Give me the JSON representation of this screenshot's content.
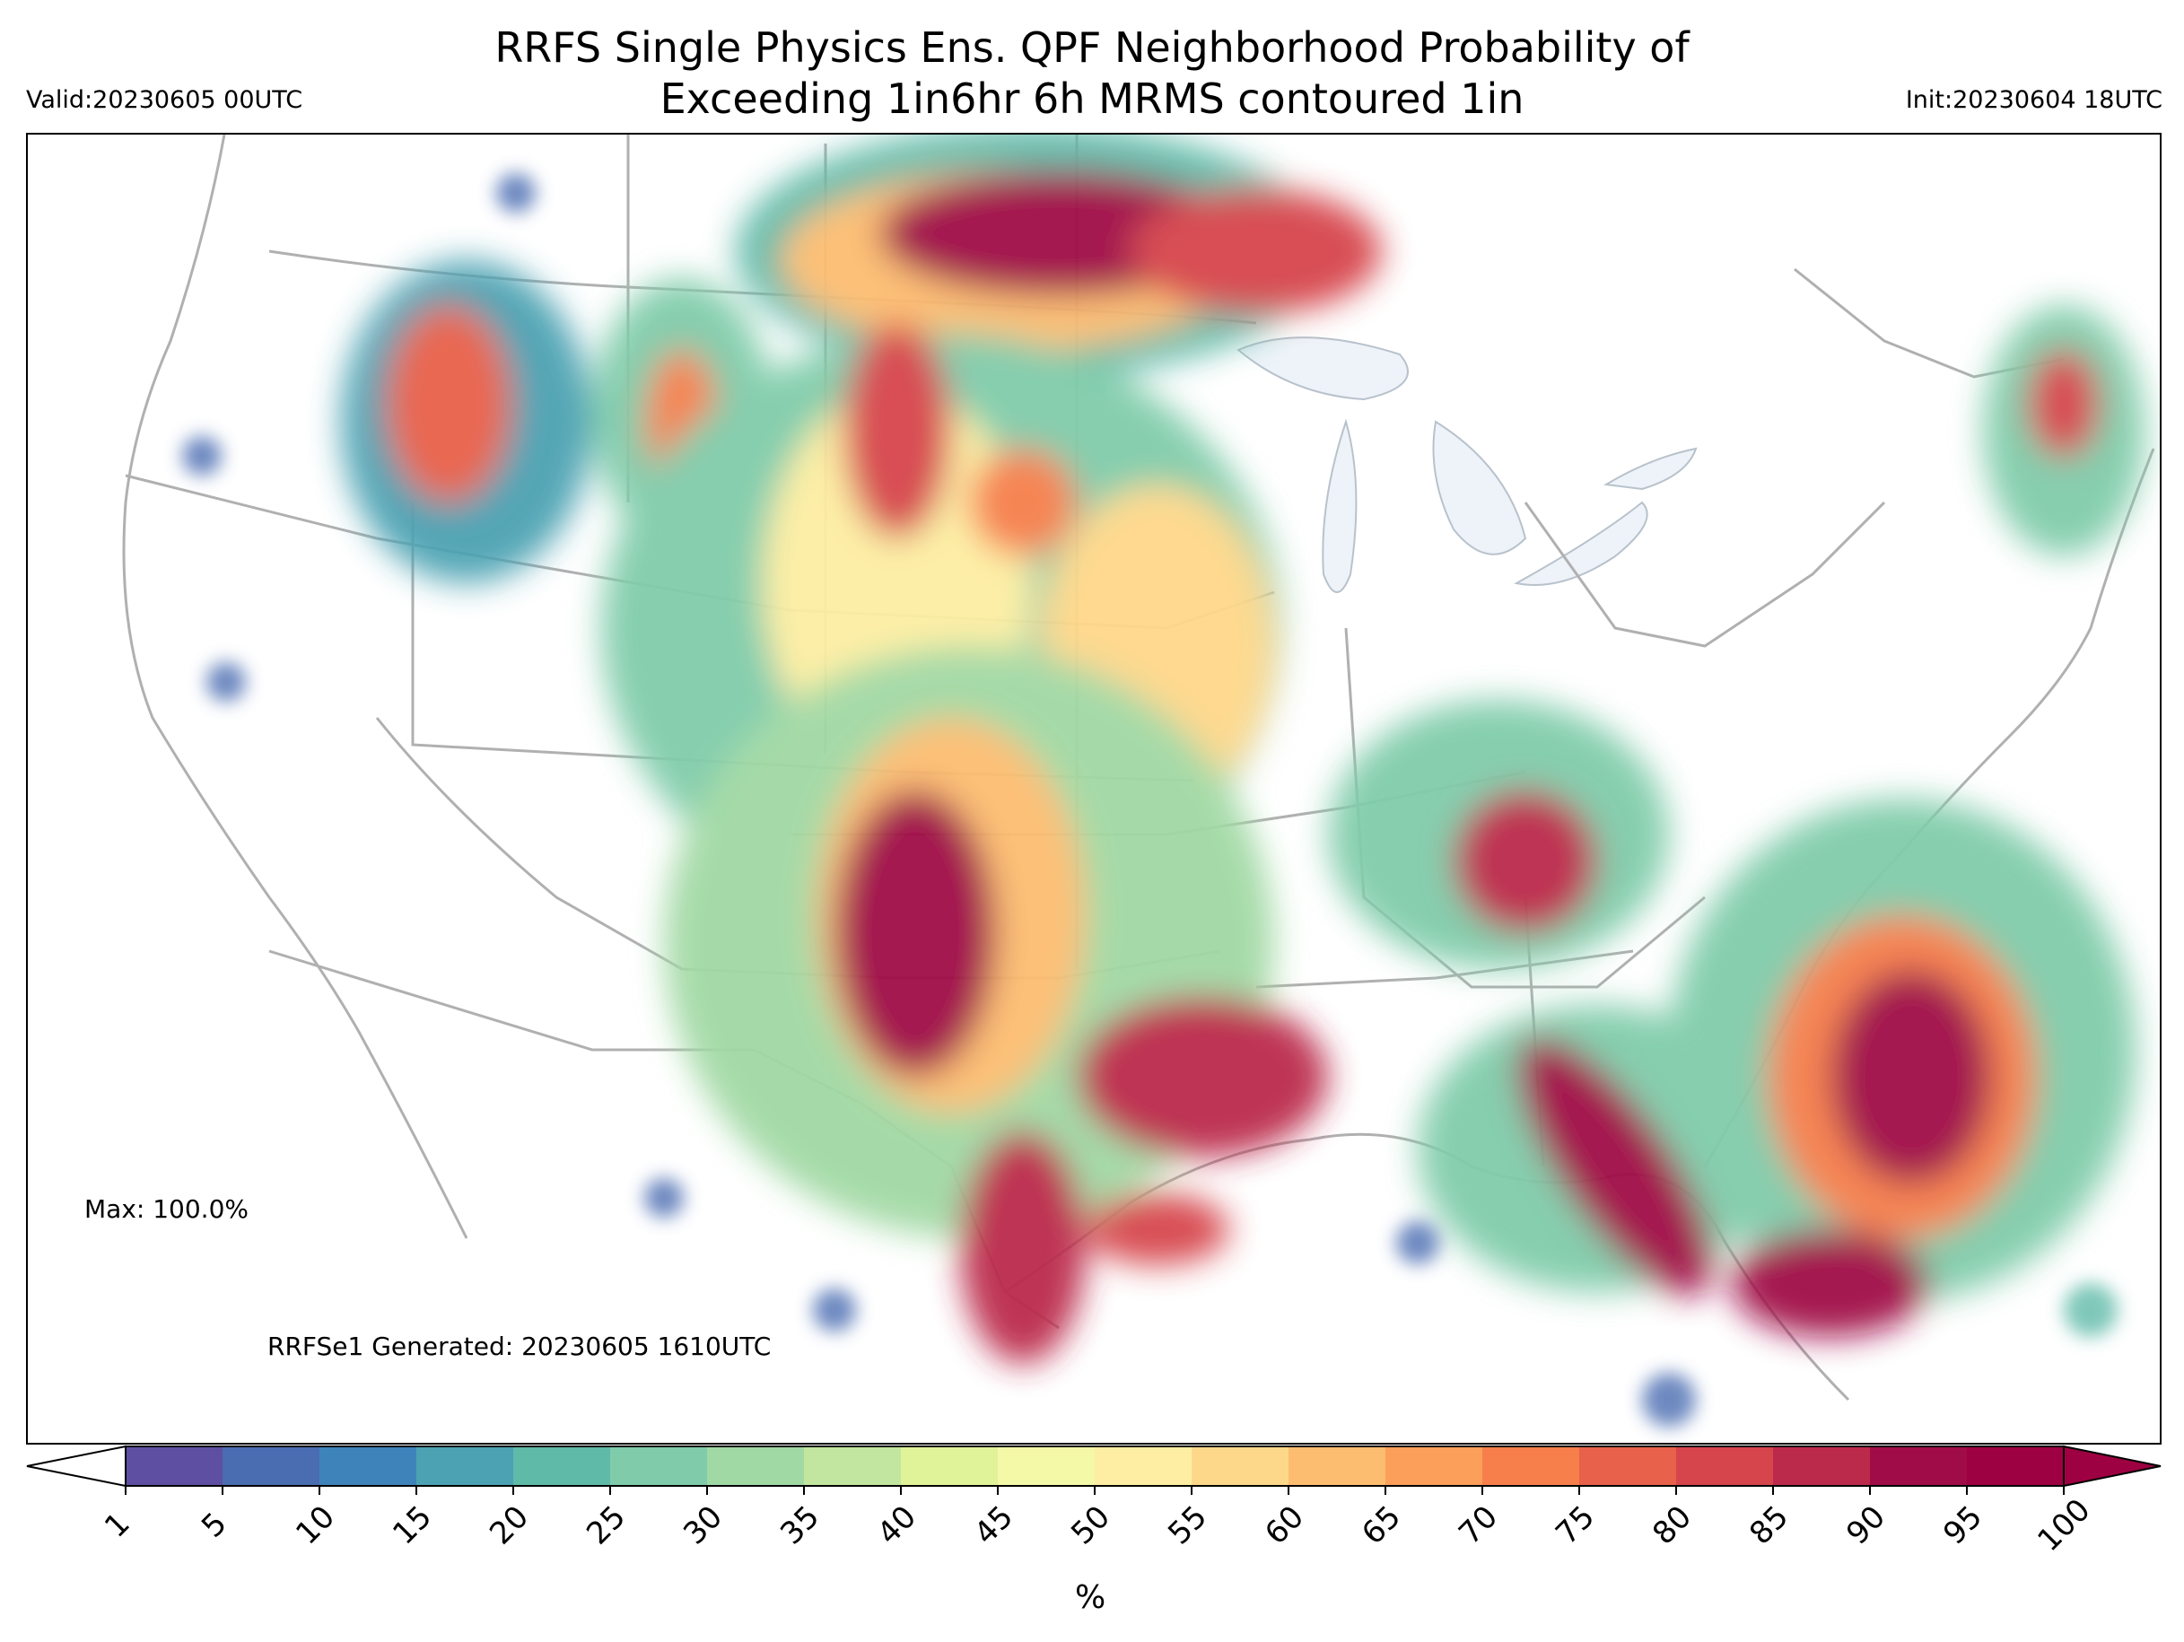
{
  "header": {
    "title_line1": "RRFS Single Physics Ens. QPF Neighborhood Probability of",
    "title_line2": "Exceeding 1in6hr 6h MRMS contoured 1in",
    "valid": "Valid:20230605 00UTC",
    "init": "Init:20230604 18UTC"
  },
  "annotations": {
    "max": "Max: 100.0%",
    "generated": "RRFSe1 Generated: 20230605 1610UTC"
  },
  "colorbar": {
    "unit_label": "%",
    "ticks": [
      "1",
      "5",
      "10",
      "15",
      "20",
      "25",
      "30",
      "35",
      "40",
      "45",
      "50",
      "55",
      "60",
      "65",
      "70",
      "75",
      "80",
      "85",
      "90",
      "95",
      "100"
    ],
    "colors": [
      "#5e4fa2",
      "#4a6cb1",
      "#3e84bb",
      "#4ca2b2",
      "#5fbaa8",
      "#80ccaa",
      "#a1d9a4",
      "#c2e69f",
      "#e1f398",
      "#f4f9a8",
      "#fdeea3",
      "#fed88a",
      "#fdbd71",
      "#fc9f5b",
      "#f67f4b",
      "#e8614a",
      "#d6444c",
      "#bb2a4b",
      "#a00c47",
      "#9e0142"
    ]
  },
  "legend_colors": {
    "low": "#5e4fa2",
    "high": "#9e0142",
    "water": "#f0f5fa",
    "borders": "#b0b0b0"
  }
}
